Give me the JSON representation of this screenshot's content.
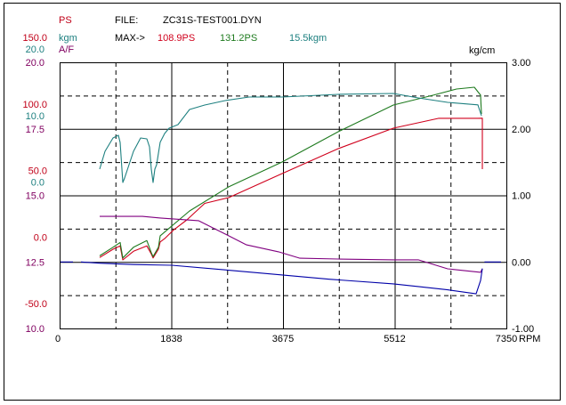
{
  "header": {
    "ps_label": "PS",
    "kgm_label": "kgm",
    "af_label": "A/F",
    "file_label": "FILE:",
    "file_name": "ZC31S-TEST001.DYN",
    "max_label": "MAX->",
    "max_ps1": "108.9PS",
    "max_ps2": "131.2PS",
    "max_kgm": "15.5kgm",
    "right_unit": "kg/cm",
    "x_unit": "RPM"
  },
  "colors": {
    "ps1": "#d0001c",
    "ps2": "#1e7a1e",
    "kgm": "#1e8080",
    "af": "#800080",
    "boost": "#0000a8",
    "ps_axis": "#c00018",
    "kgm_axis": "#1e8080",
    "af_axis": "#800060"
  },
  "chart_data": {
    "type": "line",
    "title": "ZC31S-TEST001.DYN",
    "xlabel": "RPM",
    "xlim": [
      0,
      7350
    ],
    "x_ticks": [
      "0",
      "1838",
      "3675",
      "5512",
      "7350"
    ],
    "axes": {
      "ps": {
        "range": [
          -50,
          150
        ],
        "ticks": [
          "150.0",
          "100.0",
          "50.0",
          "0.0",
          "-50.0"
        ]
      },
      "kgm": {
        "range": [
          -20,
          20
        ],
        "ticks": [
          "20.0",
          "10.0",
          "0.0"
        ]
      },
      "af": {
        "range": [
          10,
          20
        ],
        "ticks": [
          "20.0",
          "17.5",
          "15.0",
          "12.5",
          "10.0"
        ]
      },
      "boost": {
        "label": "kg/cm",
        "range": [
          -1,
          3
        ],
        "ticks": [
          "3.00",
          "2.00",
          "1.00",
          "0.00",
          "-1.00"
        ]
      }
    },
    "grid": true,
    "series": [
      {
        "name": "PS (max 108.9)",
        "axis": "ps",
        "color_key": "ps1",
        "x": [
          659,
          878,
          996,
          1040,
          1215,
          1435,
          1508,
          1537,
          1625,
          1654,
          1728,
          1874,
          2094,
          2387,
          2782,
          3660,
          4583,
          5491,
          6238,
          6882,
          6955,
          6955
        ],
        "y": [
          3.3,
          9.5,
          12,
          1.5,
          8,
          12,
          6,
          3,
          9.5,
          15,
          17.5,
          24,
          31.6,
          44,
          48.3,
          66.4,
          85.1,
          100.5,
          107.9,
          107.9,
          108,
          69.7
        ]
      },
      {
        "name": "PS (max 131.2)",
        "axis": "ps",
        "color_key": "ps2",
        "x": [
          659,
          878,
          996,
          1040,
          1215,
          1435,
          1508,
          1537,
          1625,
          1654,
          2138,
          2782,
          3660,
          4583,
          5491,
          6149,
          6530,
          6823,
          6926,
          6940
        ],
        "y": [
          4.6,
          11,
          14.6,
          3,
          11,
          16,
          7,
          4,
          11,
          19.6,
          38.3,
          56.4,
          75.1,
          97.8,
          117.9,
          125.3,
          129.9,
          131.3,
          125.3,
          111.2
        ]
      },
      {
        "name": "Torque kgm",
        "axis": "kgm",
        "color_key": "kgm",
        "x": [
          659,
          747,
          878,
          966,
          996,
          1040,
          1069,
          1215,
          1332,
          1435,
          1479,
          1508,
          1537,
          1567,
          1596,
          1654,
          1728,
          1801,
          1947,
          2138,
          2387,
          2723,
          3119,
          3660,
          4583,
          5491,
          5900,
          6384,
          6882,
          6940
        ],
        "y": [
          3.95,
          6.62,
          8.63,
          9.03,
          7.96,
          1.94,
          2.61,
          6.62,
          8.63,
          8.49,
          7.29,
          3.95,
          1.94,
          3.95,
          4.62,
          8.0,
          9.3,
          10.1,
          10.64,
          12.91,
          13.58,
          14.25,
          14.78,
          14.78,
          15.18,
          15.32,
          14.65,
          13.98,
          13.6,
          11.97
        ]
      },
      {
        "name": "A/F",
        "axis": "af",
        "color_key": "af",
        "x": [
          659,
          1362,
          1654,
          2284,
          2723,
          3075,
          3602,
          3953,
          4583,
          5491,
          5900,
          6384,
          6926,
          6955
        ],
        "y": [
          14.21,
          14.21,
          14.15,
          14.05,
          13.55,
          13.14,
          12.88,
          12.64,
          12.61,
          12.58,
          12.58,
          12.24,
          12.11,
          12.24
        ]
      },
      {
        "name": "Boost kg/cm",
        "axis": "boost",
        "color_key": "boost",
        "x": [
          659,
          1215,
          1845,
          2723,
          3704,
          4436,
          5491,
          5900,
          6384,
          6852,
          6926,
          6955
        ],
        "y": [
          -0.02,
          -0.04,
          -0.05,
          -0.12,
          -0.2,
          -0.26,
          -0.33,
          -0.37,
          -0.42,
          -0.48,
          -0.28,
          -0.1
        ]
      },
      {
        "name": "Boost baseline",
        "axis": "boost",
        "color_key": "boost",
        "x": [
          0,
          220
        ],
        "y": [
          0,
          0
        ]
      },
      {
        "name": "Boost baseline 2",
        "axis": "boost",
        "color_key": "boost",
        "x": [
          351,
          659
        ],
        "y": [
          0,
          -0.02
        ]
      },
      {
        "name": "Boost end baseline",
        "axis": "boost",
        "color_key": "boost",
        "x": [
          6990,
          7262
        ],
        "y": [
          0,
          0
        ]
      }
    ]
  }
}
